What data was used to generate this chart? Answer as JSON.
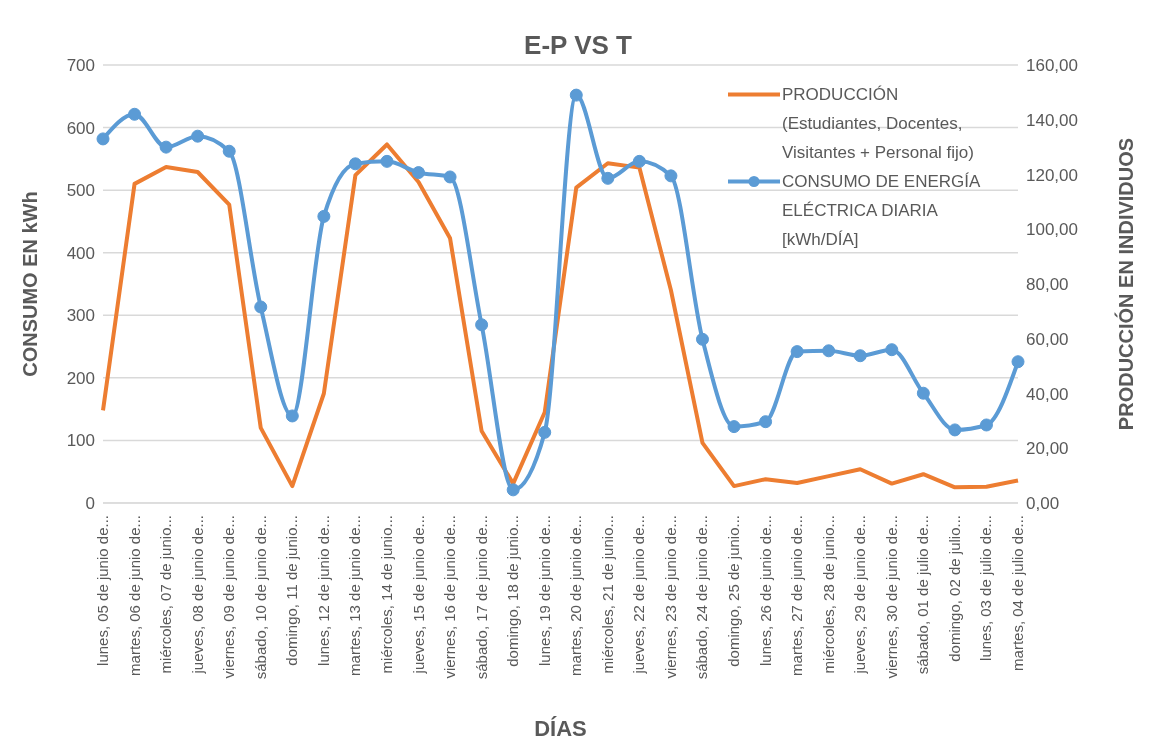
{
  "chart_data": {
    "type": "line",
    "title": "E-P VS T",
    "xlabel": "DÍAS",
    "ylabel": "CONSUMO  EN kWh",
    "y2label": "PRODUCCIÓN  EN INDIVIDUOS",
    "categories": [
      "lunes, 05 de junio de...",
      "martes, 06 de junio de...",
      "miércoles, 07 de junio...",
      "jueves, 08 de junio de...",
      "viernes, 09 de junio de...",
      "sábado, 10 de junio de...",
      "domingo, 11 de junio...",
      "lunes, 12 de junio de...",
      "martes, 13 de junio de...",
      "miércoles, 14 de junio...",
      "jueves, 15 de junio de...",
      "viernes, 16 de junio de...",
      "sábado, 17 de junio de...",
      "domingo, 18 de junio...",
      "lunes, 19 de junio de...",
      "martes, 20 de junio de...",
      "miércoles, 21 de junio...",
      "jueves, 22 de junio de...",
      "viernes, 23 de junio de...",
      "sábado, 24 de junio de...",
      "domingo, 25 de junio...",
      "lunes, 26 de junio de...",
      "martes, 27 de junio de...",
      "miércoles, 28 de junio...",
      "jueves, 29 de junio de...",
      "viernes, 30 de junio de...",
      "sábado, 01 de julio de...",
      "domingo, 02 de julio...",
      "lunes, 03 de julio de...",
      "martes, 04 de julio de..."
    ],
    "series": [
      {
        "name": "PRODUCCIÓN (Estudiantes, Docentes, Visitantes + Personal fijo)",
        "color": "#ed7d31",
        "marker": "none",
        "values": [
          148,
          510,
          537,
          529,
          477,
          120,
          27,
          175,
          524,
          573,
          513,
          423,
          115,
          31,
          145,
          504,
          543,
          536,
          340,
          96,
          27,
          38,
          32,
          43,
          54,
          31,
          46,
          25,
          26,
          36
        ]
      },
      {
        "name": "CONSUMO DE ENERGÍA ELÉCTRICA DIARIA [kWh/DÍA]",
        "color": "#5b9bd5",
        "marker": "circle",
        "axis": "y2",
        "values": [
          133,
          142,
          130,
          134,
          128.5,
          71.6,
          31.8,
          104.7,
          123.9,
          124.8,
          120.7,
          119.1,
          65.1,
          4.8,
          25.8,
          149,
          118.6,
          124.8,
          119.5,
          59.8,
          27.9,
          29.7,
          55.3,
          55.6,
          53.8,
          56,
          40.1,
          26.7,
          28.5,
          51.6
        ]
      }
    ],
    "ylim": [
      0,
      700
    ],
    "yticks": [
      0,
      100,
      200,
      300,
      400,
      500,
      600,
      700
    ],
    "y2lim": [
      0,
      160
    ],
    "y2ticks": [
      {
        "value": 0,
        "label": "0,00"
      },
      {
        "value": 20,
        "label": "20,00"
      },
      {
        "value": 40,
        "label": "40,00"
      },
      {
        "value": 60,
        "label": "60,00"
      },
      {
        "value": 80,
        "label": "80,00"
      },
      {
        "value": 100,
        "label": "100,00"
      },
      {
        "value": 120,
        "label": "120,00"
      },
      {
        "value": 140,
        "label": "140,00"
      },
      {
        "value": 160,
        "label": "160,00"
      }
    ],
    "grid": "y",
    "legend": "top right"
  }
}
